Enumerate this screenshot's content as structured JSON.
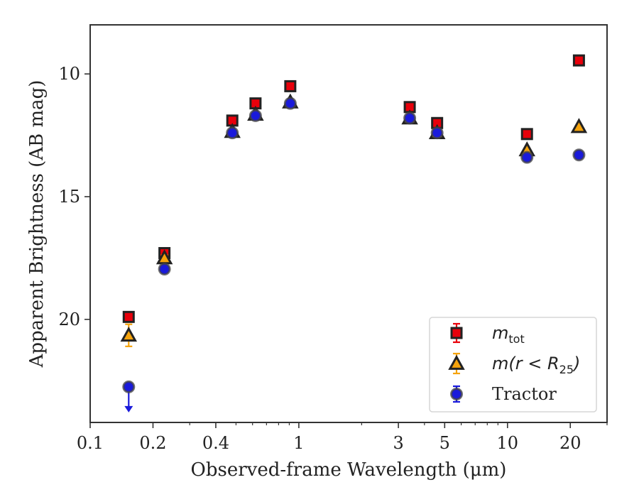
{
  "chart_data": {
    "type": "scatter",
    "xlabel": "Observed-frame Wavelength (μm)",
    "ylabel": "Apparent Brightness (AB mag)",
    "xscale": "log",
    "xlim": [
      0.1,
      30
    ],
    "ylim": [
      24.2,
      8.0
    ],
    "y_inverted": true,
    "x_ticks": [
      0.1,
      0.2,
      0.4,
      1,
      3,
      5,
      10,
      20
    ],
    "x_tick_labels": [
      "0.1",
      "0.2",
      "0.4",
      "1",
      "3",
      "5",
      "10",
      "20"
    ],
    "y_ticks": [
      10,
      15,
      20
    ],
    "y_tick_labels": [
      "10",
      "15",
      "20"
    ],
    "grid": false,
    "legend": {
      "position": "bottom-right"
    },
    "series": [
      {
        "name": "m_tot",
        "label_main": "m",
        "label_sub": "tot",
        "marker": "square",
        "color": "#e8000b",
        "edge": "#222222",
        "errcolor": "#e8000b",
        "x": [
          0.153,
          0.227,
          0.48,
          0.62,
          0.91,
          3.4,
          4.6,
          12.4,
          22.0
        ],
        "y": [
          19.9,
          17.3,
          11.9,
          11.2,
          10.5,
          11.35,
          12.0,
          12.45,
          9.45
        ],
        "yerr": [
          0.12,
          0.08,
          0.03,
          0.03,
          0.03,
          0.03,
          0.03,
          0.05,
          0.05
        ]
      },
      {
        "name": "m(r < R25)",
        "label_main": "m(r < R",
        "label_sub": "25",
        "label_end": ")",
        "marker": "triangle",
        "color": "#f5a30c",
        "edge": "#222222",
        "errcolor": "#f5a30c",
        "x": [
          0.153,
          0.227,
          0.48,
          0.62,
          0.91,
          3.4,
          4.6,
          12.4,
          22.0
        ],
        "y": [
          20.65,
          17.5,
          12.35,
          11.65,
          11.15,
          11.8,
          12.4,
          13.1,
          12.15
        ],
        "yerr": [
          0.45,
          0.12,
          0.04,
          0.04,
          0.04,
          0.04,
          0.04,
          0.06,
          0.06
        ]
      },
      {
        "name": "Tractor",
        "marker": "circle",
        "color": "#1a1adb",
        "edge": "#444444",
        "errcolor": "#1a1adb",
        "x": [
          0.153,
          0.227,
          0.48,
          0.62,
          0.91,
          3.4,
          4.6,
          12.4,
          22.0
        ],
        "y": [
          22.75,
          17.95,
          12.4,
          11.7,
          11.2,
          11.8,
          12.4,
          13.4,
          13.3
        ],
        "yerr": [
          0.0,
          0.05,
          0.03,
          0.03,
          0.03,
          0.03,
          0.03,
          0.05,
          0.05
        ],
        "upper_limit": [
          true,
          false,
          false,
          false,
          false,
          false,
          false,
          false,
          false
        ]
      }
    ]
  }
}
